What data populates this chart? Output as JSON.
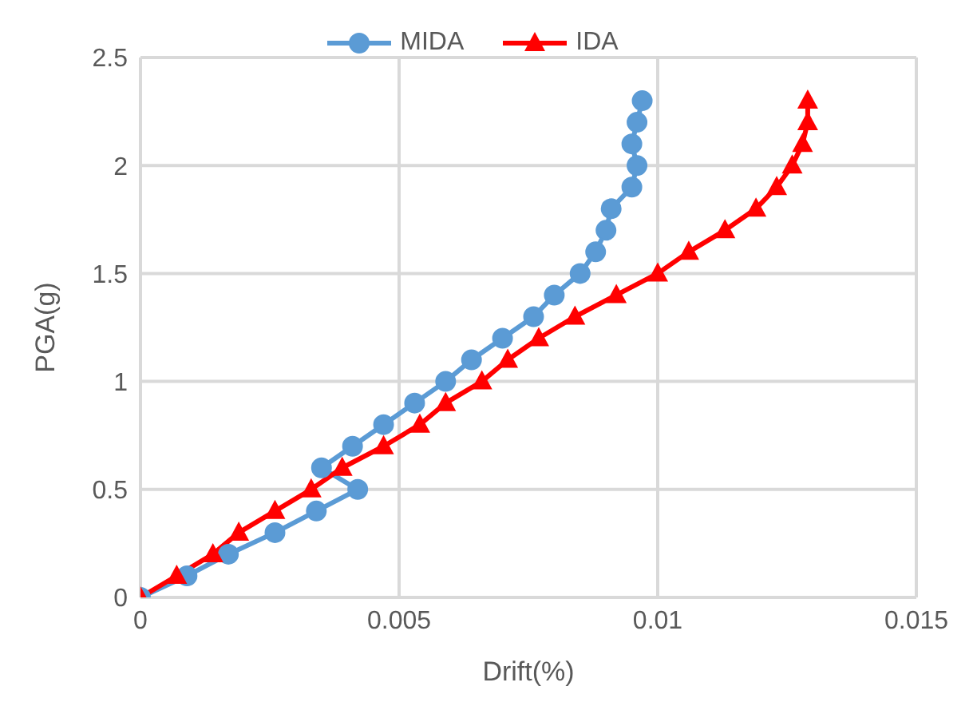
{
  "chart_data": {
    "type": "line",
    "xlabel": "Drift(%)",
    "ylabel": "PGA(g)",
    "xlim": [
      0,
      0.015
    ],
    "xticks": [
      0,
      0.005,
      0.01,
      0.015
    ],
    "ylim": [
      0,
      2.5
    ],
    "yticks": [
      0,
      0.5,
      1,
      1.5,
      2,
      2.5
    ],
    "grid": true,
    "legend": "top",
    "line_style": "solid",
    "series": [
      {
        "name": "MIDA",
        "color": "#5b9bd5",
        "marker": "circle",
        "x": [
          0,
          0.0009,
          0.0017,
          0.0026,
          0.0034,
          0.0042,
          0.0035,
          0.0041,
          0.0047,
          0.0053,
          0.0059,
          0.0064,
          0.007,
          0.0076,
          0.008,
          0.0085,
          0.0088,
          0.009,
          0.0091,
          0.0095,
          0.0096,
          0.0095,
          0.0096,
          0.0097
        ],
        "values": [
          0,
          0.1,
          0.2,
          0.3,
          0.4,
          0.5,
          0.6,
          0.7,
          0.8,
          0.9,
          1,
          1.1,
          1.2,
          1.3,
          1.4,
          1.5,
          1.6,
          1.7,
          1.8,
          1.9,
          2,
          2.1,
          2.2,
          2.3
        ]
      },
      {
        "name": "IDA",
        "color": "#ff0000",
        "marker": "triangle",
        "x": [
          0,
          0.0007,
          0.0014,
          0.0019,
          0.0026,
          0.0033,
          0.0039,
          0.0047,
          0.0054,
          0.0059,
          0.0066,
          0.0071,
          0.0077,
          0.0084,
          0.0092,
          0.01,
          0.0106,
          0.0113,
          0.0119,
          0.0123,
          0.0126,
          0.0128,
          0.0129,
          0.0129
        ],
        "values": [
          0,
          0.1,
          0.2,
          0.3,
          0.4,
          0.5,
          0.6,
          0.7,
          0.8,
          0.9,
          1,
          1.1,
          1.2,
          1.3,
          1.4,
          1.5,
          1.6,
          1.7,
          1.8,
          1.9,
          2,
          2.1,
          2.2,
          2.3
        ]
      }
    ]
  }
}
